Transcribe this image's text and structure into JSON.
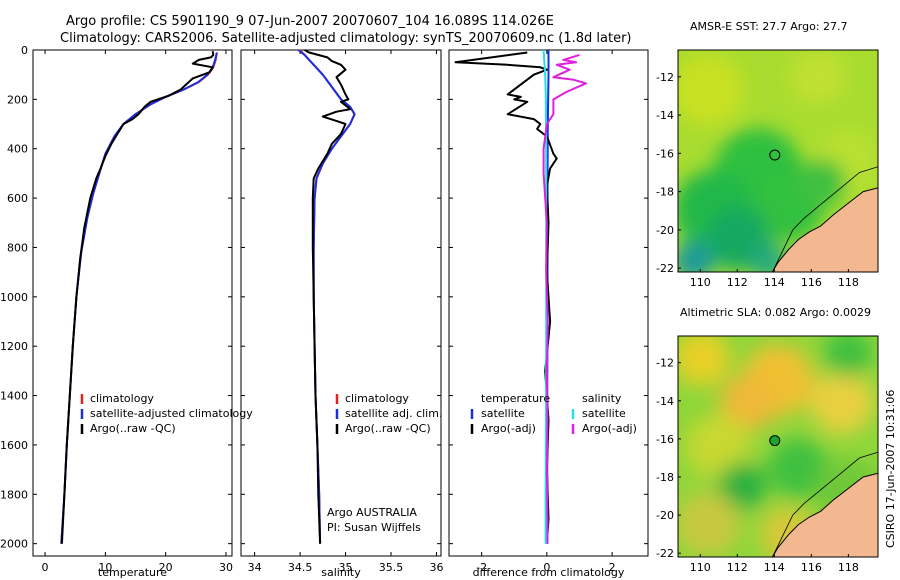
{
  "header": {
    "line1": "Argo profile: CS 5901190_9 07-Jun-2007 20070607_104 16.089S 114.026E",
    "line2": "Climatology: CARS2006. Satellite-adjusted climatology: synTS_20070609.nc (1.8d later)"
  },
  "credit": "CSIRO 17-Jun-2007 10:31:06",
  "colors": {
    "climatology": "#e8201c",
    "satellite": "#1a2fe0",
    "argo": "#000000",
    "sal_satellite": "#22e0e8",
    "sal_argo": "#e020e0",
    "land": "#f4b890",
    "coast": "#000000"
  },
  "chart_data": [
    {
      "type": "line",
      "xlabel": "temperature",
      "ylabel": "",
      "xlim": [
        -2,
        31
      ],
      "ylim": [
        2050,
        0
      ],
      "xticks": [
        0,
        10,
        20,
        30
      ],
      "yticks": [
        0,
        200,
        400,
        600,
        800,
        1000,
        1200,
        1400,
        1600,
        1800,
        2000
      ],
      "legend": [
        "climatology",
        "satellite-adjusted climatology",
        "Argo(..raw -QC)"
      ],
      "series": [
        {
          "name": "climatology",
          "color": "climatology",
          "points": [
            [
              28.5,
              10
            ],
            [
              28.3,
              40
            ],
            [
              27.9,
              70
            ],
            [
              27,
              100
            ],
            [
              25.5,
              130
            ],
            [
              23,
              160
            ],
            [
              20,
              190
            ],
            [
              17.5,
              220
            ],
            [
              15,
              260
            ],
            [
              13,
              300
            ],
            [
              11.5,
              350
            ],
            [
              10,
              420
            ],
            [
              9,
              500
            ],
            [
              8,
              580
            ],
            [
              7,
              680
            ],
            [
              6,
              820
            ],
            [
              5.2,
              1000
            ],
            [
              4.6,
              1200
            ],
            [
              4.1,
              1400
            ],
            [
              3.6,
              1600
            ],
            [
              3.2,
              1800
            ],
            [
              2.7,
              2000
            ]
          ]
        },
        {
          "name": "satellite-adjusted climatology",
          "color": "satellite",
          "points": [
            [
              28.5,
              10
            ],
            [
              28.2,
              40
            ],
            [
              27.8,
              70
            ],
            [
              26.9,
              100
            ],
            [
              25.4,
              130
            ],
            [
              23,
              160
            ],
            [
              20,
              190
            ],
            [
              17.5,
              220
            ],
            [
              15,
              260
            ],
            [
              13,
              300
            ],
            [
              11.5,
              350
            ],
            [
              10,
              420
            ],
            [
              9,
              500
            ],
            [
              8,
              580
            ],
            [
              7,
              680
            ],
            [
              6,
              820
            ],
            [
              5.2,
              1000
            ],
            [
              4.6,
              1200
            ],
            [
              4.1,
              1400
            ],
            [
              3.6,
              1600
            ],
            [
              3.2,
              1800
            ],
            [
              2.7,
              2000
            ]
          ]
        },
        {
          "name": "Argo(..raw -QC)",
          "color": "argo",
          "points": [
            [
              27.8,
              5
            ],
            [
              27.9,
              20
            ],
            [
              27.5,
              30
            ],
            [
              25.5,
              40
            ],
            [
              24.5,
              55
            ],
            [
              27.8,
              70
            ],
            [
              27.3,
              90
            ],
            [
              24.5,
              115
            ],
            [
              22.5,
              160
            ],
            [
              20.5,
              185
            ],
            [
              17.5,
              210
            ],
            [
              16.5,
              230
            ],
            [
              15.5,
              260
            ],
            [
              14.5,
              280
            ],
            [
              13,
              300
            ],
            [
              12,
              340
            ],
            [
              11,
              380
            ],
            [
              10,
              430
            ],
            [
              9.2,
              480
            ],
            [
              8.5,
              520
            ],
            [
              7.5,
              600
            ],
            [
              6.5,
              720
            ],
            [
              5.8,
              850
            ],
            [
              5.2,
              1000
            ],
            [
              4.6,
              1200
            ],
            [
              4.1,
              1400
            ],
            [
              3.6,
              1600
            ],
            [
              3.2,
              1800
            ],
            [
              2.8,
              2000
            ]
          ]
        }
      ]
    },
    {
      "type": "line",
      "xlabel": "salinity",
      "ylabel": "",
      "xlim": [
        33.85,
        36.05
      ],
      "ylim": [
        2050,
        0
      ],
      "xticks": [
        34,
        34.5,
        35,
        35.5,
        36
      ],
      "xtick_labels": [
        "34",
        "34.5",
        "35",
        "35.5",
        "36"
      ],
      "legend": [
        "climatology",
        "satellite adj. clim.",
        "Argo(..raw -QC)"
      ],
      "annotation": [
        "Argo AUSTRALIA",
        "PI: Susan Wijffels"
      ],
      "series": [
        {
          "name": "climatology",
          "color": "climatology",
          "points": [
            [
              34.5,
              0
            ],
            [
              34.55,
              20
            ],
            [
              34.65,
              60
            ],
            [
              34.75,
              100
            ],
            [
              34.85,
              150
            ],
            [
              34.95,
              200
            ],
            [
              35.05,
              230
            ],
            [
              35.1,
              260
            ],
            [
              35.05,
              300
            ],
            [
              34.95,
              350
            ],
            [
              34.85,
              400
            ],
            [
              34.75,
              460
            ],
            [
              34.68,
              520
            ],
            [
              34.66,
              600
            ],
            [
              34.65,
              800
            ],
            [
              34.65,
              1000
            ],
            [
              34.66,
              1200
            ],
            [
              34.67,
              1400
            ],
            [
              34.69,
              1600
            ],
            [
              34.71,
              1800
            ],
            [
              34.72,
              2000
            ]
          ]
        },
        {
          "name": "satellite adj. clim.",
          "color": "satellite",
          "points": [
            [
              34.48,
              0
            ],
            [
              34.55,
              20
            ],
            [
              34.65,
              60
            ],
            [
              34.75,
              100
            ],
            [
              34.85,
              150
            ],
            [
              34.95,
              200
            ],
            [
              35.05,
              230
            ],
            [
              35.1,
              260
            ],
            [
              35.05,
              300
            ],
            [
              34.95,
              350
            ],
            [
              34.85,
              400
            ],
            [
              34.75,
              460
            ],
            [
              34.68,
              520
            ],
            [
              34.66,
              600
            ],
            [
              34.65,
              800
            ],
            [
              34.65,
              1000
            ],
            [
              34.66,
              1200
            ],
            [
              34.67,
              1400
            ],
            [
              34.69,
              1600
            ],
            [
              34.71,
              1800
            ],
            [
              34.72,
              2000
            ]
          ]
        },
        {
          "name": "Argo(..raw -QC)",
          "color": "argo",
          "points": [
            [
              34.55,
              0
            ],
            [
              34.6,
              10
            ],
            [
              34.8,
              30
            ],
            [
              34.85,
              45
            ],
            [
              34.95,
              60
            ],
            [
              35.0,
              80
            ],
            [
              34.9,
              110
            ],
            [
              34.95,
              140
            ],
            [
              35.0,
              180
            ],
            [
              35.03,
              200
            ],
            [
              34.95,
              210
            ],
            [
              35.02,
              230
            ],
            [
              35.05,
              240
            ],
            [
              34.9,
              250
            ],
            [
              34.75,
              270
            ],
            [
              34.92,
              290
            ],
            [
              35.0,
              300
            ],
            [
              34.95,
              340
            ],
            [
              34.85,
              380
            ],
            [
              34.8,
              420
            ],
            [
              34.7,
              480
            ],
            [
              34.65,
              520
            ],
            [
              34.64,
              600
            ],
            [
              34.64,
              800
            ],
            [
              34.65,
              1000
            ],
            [
              34.66,
              1200
            ],
            [
              34.67,
              1400
            ],
            [
              34.69,
              1600
            ],
            [
              34.7,
              1800
            ],
            [
              34.72,
              2000
            ]
          ]
        }
      ]
    },
    {
      "type": "line",
      "xlabel": "difference from climatology",
      "ylabel": "",
      "xlim": [
        -3,
        3.1
      ],
      "ylim": [
        2050,
        0
      ],
      "xticks": [
        -2,
        0,
        2
      ],
      "legend_temperature": [
        "temperature",
        "satellite",
        "Argo(-adj)"
      ],
      "legend_salinity": [
        "salinity",
        "satellite",
        "Argo(-adj)"
      ],
      "series": [
        {
          "name": "satellite",
          "color": "satellite",
          "points": [
            [
              0.05,
              0
            ],
            [
              0.05,
              100
            ],
            [
              0.03,
              300
            ],
            [
              0.02,
              600
            ],
            [
              0.02,
              1000
            ],
            [
              0.01,
              1500
            ],
            [
              0.01,
              2000
            ]
          ]
        },
        {
          "name": "Argo(-adj)",
          "color": "argo",
          "points": [
            [
              -0.6,
              10
            ],
            [
              -2.8,
              50
            ],
            [
              -1.2,
              60
            ],
            [
              -0.2,
              70
            ],
            [
              0,
              80
            ],
            [
              -0.4,
              100
            ],
            [
              -1.2,
              180
            ],
            [
              -0.8,
              190
            ],
            [
              -1.0,
              200
            ],
            [
              -0.6,
              210
            ],
            [
              -1.2,
              260
            ],
            [
              -0.4,
              280
            ],
            [
              -0.2,
              300
            ],
            [
              -0.3,
              320
            ],
            [
              0,
              350
            ],
            [
              0.2,
              420
            ],
            [
              0.3,
              440
            ],
            [
              0.1,
              480
            ],
            [
              0,
              550
            ],
            [
              0.05,
              700
            ],
            [
              0,
              900
            ],
            [
              0.1,
              1100
            ],
            [
              -0.05,
              1300
            ],
            [
              0.05,
              1500
            ],
            [
              0,
              1700
            ],
            [
              0.05,
              1900
            ],
            [
              0,
              2000
            ]
          ]
        },
        {
          "name": "salinity satellite",
          "color": "sal_satellite",
          "points": [
            [
              -0.1,
              0
            ],
            [
              -0.05,
              100
            ],
            [
              -0.03,
              200
            ],
            [
              -0.02,
              400
            ],
            [
              -0.02,
              700
            ],
            [
              -0.02,
              1000
            ],
            [
              -0.02,
              1300
            ],
            [
              -0.03,
              1600
            ],
            [
              -0.04,
              1800
            ],
            [
              -0.04,
              2000
            ]
          ]
        },
        {
          "name": "salinity Argo(-adj)",
          "color": "sal_argo",
          "points": [
            [
              1.0,
              20
            ],
            [
              0.5,
              40
            ],
            [
              0.9,
              50
            ],
            [
              0.3,
              60
            ],
            [
              0.7,
              80
            ],
            [
              0.2,
              110
            ],
            [
              0.8,
              120
            ],
            [
              1.2,
              135
            ],
            [
              0.6,
              170
            ],
            [
              0.2,
              200
            ],
            [
              0.2,
              260
            ],
            [
              0,
              300
            ],
            [
              -0.1,
              400
            ],
            [
              -0.1,
              500
            ],
            [
              -0.05,
              600
            ],
            [
              0,
              700
            ],
            [
              -0.02,
              900
            ],
            [
              0.03,
              1100
            ],
            [
              0,
              1300
            ],
            [
              0.02,
              1500
            ],
            [
              0,
              1700
            ],
            [
              0.02,
              1900
            ],
            [
              0.02,
              2000
            ]
          ]
        }
      ]
    }
  ],
  "maps": [
    {
      "title": "AMSR-E SST: 27.7 Argo: 27.7",
      "xlim": [
        108.8,
        119.6
      ],
      "ylim": [
        -22.2,
        -10.6
      ],
      "xticks": [
        110,
        112,
        114,
        116,
        118
      ],
      "yticks": [
        -12,
        -14,
        -16,
        -18,
        -20,
        -22
      ],
      "marker": [
        114.026,
        -16.089
      ],
      "marker_fill": "none"
    },
    {
      "title": "Altimetric SLA: 0.082 Argo: 0.0029",
      "xlim": [
        108.8,
        119.6
      ],
      "ylim": [
        -22.2,
        -10.6
      ],
      "xticks": [
        110,
        112,
        114,
        116,
        118
      ],
      "yticks": [
        -12,
        -14,
        -16,
        -18,
        -20,
        -22
      ],
      "marker": [
        114.026,
        -16.089
      ],
      "marker_fill": "#22a030"
    }
  ]
}
